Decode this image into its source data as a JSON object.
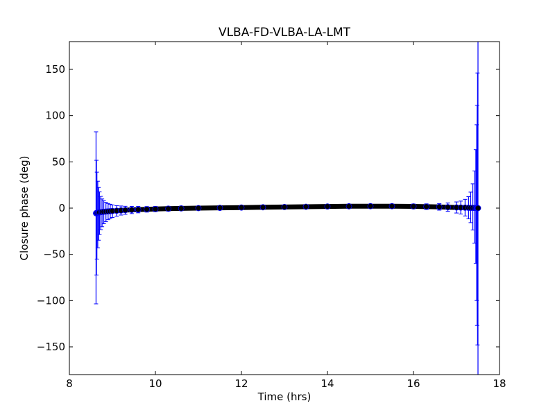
{
  "chart_data": {
    "type": "scatter",
    "title": "VLBA-FD-VLBA-LA-LMT",
    "xlabel": "Time (hrs)",
    "ylabel": "Closure phase (deg)",
    "xlim": [
      8,
      18
    ],
    "ylim": [
      -180,
      180
    ],
    "xticks": [
      8,
      10,
      12,
      14,
      16,
      18
    ],
    "yticks": [
      -150,
      -100,
      -50,
      0,
      50,
      100,
      150
    ],
    "xtick_labels": [
      "8",
      "10",
      "12",
      "14",
      "16",
      "18"
    ],
    "ytick_labels": [
      "−150",
      "−100",
      "−50",
      "0",
      "50",
      "100",
      "150"
    ],
    "grid": false,
    "series": [
      {
        "marker": "circle",
        "marker_color": "#000000",
        "errorbar_color": "#0000ff",
        "x": [
          8.62,
          8.63,
          8.64,
          8.66,
          8.68,
          8.7,
          8.73,
          8.76,
          8.8,
          8.85,
          8.9,
          8.95,
          9.0,
          9.1,
          9.2,
          9.3,
          9.45,
          9.6,
          9.8,
          10.0,
          10.3,
          10.6,
          11.0,
          11.5,
          12.0,
          12.5,
          13.0,
          13.5,
          14.0,
          14.5,
          15.0,
          15.5,
          16.0,
          16.3,
          16.6,
          16.8,
          17.0,
          17.1,
          17.2,
          17.28,
          17.33,
          17.38,
          17.42,
          17.45,
          17.47,
          17.48,
          17.49,
          17.5
        ],
        "y": [
          -5.5,
          -5.3,
          -5.1,
          -4.9,
          -4.7,
          -4.5,
          -4.3,
          -4.1,
          -3.9,
          -3.7,
          -3.5,
          -3.3,
          -3.1,
          -2.8,
          -2.5,
          -2.2,
          -1.9,
          -1.6,
          -1.3,
          -1.0,
          -0.6,
          -0.3,
          0.0,
          0.3,
          0.6,
          0.9,
          1.2,
          1.5,
          1.8,
          2.0,
          2.1,
          2.1,
          1.9,
          1.6,
          1.3,
          1.0,
          0.7,
          0.6,
          0.5,
          0.4,
          0.3,
          0.3,
          0.2,
          0.2,
          0.1,
          0.1,
          0.1,
          0.0
        ],
        "err_low": [
          98,
          67,
          50,
          38,
          30,
          24,
          19,
          16,
          13,
          11,
          9,
          8,
          7,
          6,
          5,
          4.5,
          4,
          3.5,
          3,
          2.8,
          2.6,
          2.4,
          2.2,
          2.1,
          2.0,
          2.0,
          2.0,
          2.0,
          2.0,
          2.0,
          2.1,
          2.2,
          2.5,
          3,
          3.5,
          4.5,
          6,
          7,
          9,
          12,
          16,
          24,
          38,
          60,
          100,
          127,
          148,
          180
        ],
        "err_high": [
          88,
          57,
          44,
          34,
          27,
          22,
          17,
          14,
          12,
          10,
          8.5,
          7.5,
          6.5,
          5.5,
          4.8,
          4.2,
          3.8,
          3.4,
          3,
          2.8,
          2.6,
          2.4,
          2.2,
          2.1,
          2.0,
          2.0,
          2.0,
          2.0,
          2.0,
          2.0,
          2.1,
          2.2,
          2.5,
          3,
          3.5,
          4.5,
          6,
          7,
          9,
          12,
          17,
          26,
          40,
          63,
          90,
          111,
          146,
          180
        ]
      }
    ]
  }
}
